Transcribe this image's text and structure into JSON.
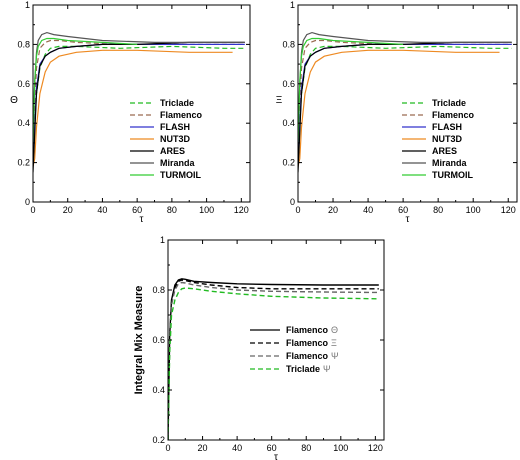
{
  "chart_data": [
    {
      "type": "line",
      "xlabel": "τ",
      "ylabel": "Θ",
      "xlim": [
        0,
        125
      ],
      "ylim": [
        0,
        1
      ],
      "xticks": [
        "0",
        "20",
        "40",
        "60",
        "80",
        "100",
        "120"
      ],
      "yticks": [
        "0",
        "0.2",
        "0.4",
        "0.6",
        "0.8",
        "1"
      ],
      "legend_position": "lower-right",
      "series": [
        {
          "name": "Triclade",
          "color": "#22bb22",
          "dash": "dashed",
          "x": [
            0,
            2,
            4,
            7,
            10,
            15,
            25,
            50,
            80,
            110,
            122
          ],
          "y": [
            0.25,
            0.55,
            0.68,
            0.75,
            0.78,
            0.79,
            0.79,
            0.78,
            0.79,
            0.78,
            0.78
          ]
        },
        {
          "name": "Flamenco",
          "color": "#9a6a50",
          "dash": "dashed",
          "x": [
            0,
            2,
            4,
            7,
            10,
            15,
            25,
            50,
            80,
            110,
            122
          ],
          "y": [
            0.3,
            0.68,
            0.78,
            0.81,
            0.82,
            0.82,
            0.81,
            0.8,
            0.8,
            0.8,
            0.8
          ]
        },
        {
          "name": "FLASH",
          "color": "#3333cc",
          "dash": "solid",
          "x": [
            0,
            2,
            4,
            7,
            10,
            15,
            25,
            40,
            60,
            90,
            122
          ],
          "y": [
            0.2,
            0.58,
            0.7,
            0.74,
            0.76,
            0.78,
            0.79,
            0.8,
            0.8,
            0.8,
            0.8
          ]
        },
        {
          "name": "NUT3D",
          "color": "#ee8a22",
          "dash": "solid",
          "x": [
            0,
            1,
            2,
            4,
            7,
            10,
            15,
            25,
            40,
            60,
            90,
            115
          ],
          "y": [
            0.18,
            0.22,
            0.38,
            0.55,
            0.66,
            0.71,
            0.74,
            0.76,
            0.77,
            0.77,
            0.76,
            0.76
          ]
        },
        {
          "name": "ARES",
          "color": "#000000",
          "dash": "solid",
          "x": [
            0,
            2,
            4,
            7,
            10,
            15,
            25,
            40,
            60,
            90,
            122
          ],
          "y": [
            0.15,
            0.55,
            0.69,
            0.74,
            0.76,
            0.78,
            0.79,
            0.8,
            0.8,
            0.81,
            0.81
          ]
        },
        {
          "name": "Miranda",
          "color": "#555555",
          "dash": "solid",
          "x": [
            0,
            1,
            2,
            3,
            5,
            8,
            12,
            20,
            40,
            70,
            100,
            122
          ],
          "y": [
            0.3,
            0.6,
            0.76,
            0.82,
            0.85,
            0.86,
            0.85,
            0.84,
            0.82,
            0.81,
            0.81,
            0.81
          ]
        },
        {
          "name": "TURMOIL",
          "color": "#33cc33",
          "dash": "solid",
          "x": [
            0,
            1,
            2,
            3,
            5,
            8,
            12,
            20,
            40,
            60
          ],
          "y": [
            0.3,
            0.62,
            0.74,
            0.79,
            0.82,
            0.83,
            0.83,
            0.82,
            0.81,
            0.8
          ]
        }
      ]
    },
    {
      "type": "line",
      "xlabel": "τ",
      "ylabel": "Ξ",
      "xlim": [
        0,
        125
      ],
      "ylim": [
        0,
        1
      ],
      "xticks": [
        "0",
        "20",
        "40",
        "60",
        "80",
        "100",
        "120"
      ],
      "yticks": [
        "0",
        "0.2",
        "0.4",
        "0.6",
        "0.8",
        "1"
      ],
      "legend_position": "lower-right",
      "series": [
        {
          "name": "Triclade",
          "color": "#22bb22",
          "dash": "dashed",
          "x": [
            0,
            2,
            4,
            7,
            10,
            15,
            25,
            50,
            80,
            110,
            122
          ],
          "y": [
            0.25,
            0.55,
            0.68,
            0.75,
            0.78,
            0.79,
            0.79,
            0.78,
            0.79,
            0.78,
            0.78
          ]
        },
        {
          "name": "Flamenco",
          "color": "#9a6a50",
          "dash": "dashed",
          "x": [
            0,
            2,
            4,
            7,
            10,
            15,
            25,
            50,
            80,
            110,
            122
          ],
          "y": [
            0.3,
            0.68,
            0.78,
            0.81,
            0.82,
            0.82,
            0.81,
            0.8,
            0.8,
            0.8,
            0.8
          ]
        },
        {
          "name": "FLASH",
          "color": "#3333cc",
          "dash": "solid",
          "x": [
            0,
            2,
            4,
            7,
            10,
            15,
            25,
            40,
            60,
            90,
            122
          ],
          "y": [
            0.2,
            0.58,
            0.7,
            0.74,
            0.76,
            0.78,
            0.79,
            0.8,
            0.8,
            0.8,
            0.8
          ]
        },
        {
          "name": "NUT3D",
          "color": "#ee8a22",
          "dash": "solid",
          "x": [
            0,
            1,
            2,
            4,
            7,
            10,
            15,
            25,
            40,
            60,
            90,
            115
          ],
          "y": [
            0.18,
            0.22,
            0.38,
            0.55,
            0.66,
            0.71,
            0.74,
            0.76,
            0.77,
            0.77,
            0.76,
            0.76
          ]
        },
        {
          "name": "ARES",
          "color": "#000000",
          "dash": "solid",
          "x": [
            0,
            2,
            4,
            7,
            10,
            15,
            25,
            40,
            60,
            90,
            122
          ],
          "y": [
            0.15,
            0.55,
            0.69,
            0.74,
            0.76,
            0.78,
            0.79,
            0.8,
            0.8,
            0.81,
            0.81
          ]
        },
        {
          "name": "Miranda",
          "color": "#555555",
          "dash": "solid",
          "x": [
            0,
            1,
            2,
            3,
            5,
            8,
            12,
            20,
            40,
            70,
            100,
            122
          ],
          "y": [
            0.3,
            0.6,
            0.76,
            0.82,
            0.85,
            0.86,
            0.85,
            0.84,
            0.82,
            0.81,
            0.81,
            0.81
          ]
        },
        {
          "name": "TURMOIL",
          "color": "#33cc33",
          "dash": "solid",
          "x": [
            0,
            1,
            2,
            3,
            5,
            8,
            12,
            20,
            40,
            60
          ],
          "y": [
            0.3,
            0.62,
            0.74,
            0.79,
            0.82,
            0.83,
            0.83,
            0.82,
            0.81,
            0.8
          ]
        }
      ]
    },
    {
      "type": "line",
      "xlabel": "τ",
      "ylabel": "Integral Mix Measure",
      "xlim": [
        0,
        125
      ],
      "ylim": [
        0.2,
        1
      ],
      "xticks": [
        "0",
        "20",
        "40",
        "60",
        "80",
        "100",
        "120"
      ],
      "yticks": [
        "0.2",
        "0.4",
        "0.6",
        "0.8",
        "1"
      ],
      "legend_position": "center-right",
      "series": [
        {
          "name": "Flamenco",
          "symbol": "Θ",
          "color": "#000000",
          "dash": "solid",
          "x": [
            0,
            1,
            2,
            4,
            6,
            8,
            10,
            15,
            25,
            40,
            60,
            90,
            122
          ],
          "y": [
            0.2,
            0.62,
            0.76,
            0.82,
            0.84,
            0.845,
            0.843,
            0.835,
            0.83,
            0.825,
            0.822,
            0.82,
            0.82
          ]
        },
        {
          "name": "Flamenco",
          "symbol": "Ξ",
          "color": "#000000",
          "dash": "dashed",
          "x": [
            0,
            1,
            2,
            4,
            6,
            8,
            10,
            15,
            25,
            40,
            60,
            90,
            122
          ],
          "y": [
            0.2,
            0.61,
            0.75,
            0.81,
            0.835,
            0.84,
            0.838,
            0.83,
            0.82,
            0.81,
            0.805,
            0.805,
            0.805
          ]
        },
        {
          "name": "Flamenco",
          "symbol": "Ψ",
          "color": "#666666",
          "dash": "dashed",
          "x": [
            0,
            1,
            2,
            4,
            6,
            8,
            10,
            15,
            25,
            40,
            60,
            90,
            122
          ],
          "y": [
            0.2,
            0.6,
            0.74,
            0.8,
            0.825,
            0.83,
            0.828,
            0.82,
            0.81,
            0.8,
            0.795,
            0.792,
            0.79
          ]
        },
        {
          "name": "Triclade",
          "symbol": "Ψ",
          "color": "#22bb22",
          "dash": "dashed",
          "x": [
            0,
            1,
            2,
            4,
            6,
            8,
            10,
            15,
            25,
            40,
            60,
            90,
            122
          ],
          "y": [
            0.2,
            0.55,
            0.7,
            0.76,
            0.79,
            0.805,
            0.808,
            0.805,
            0.795,
            0.785,
            0.775,
            0.768,
            0.765
          ]
        }
      ]
    }
  ]
}
